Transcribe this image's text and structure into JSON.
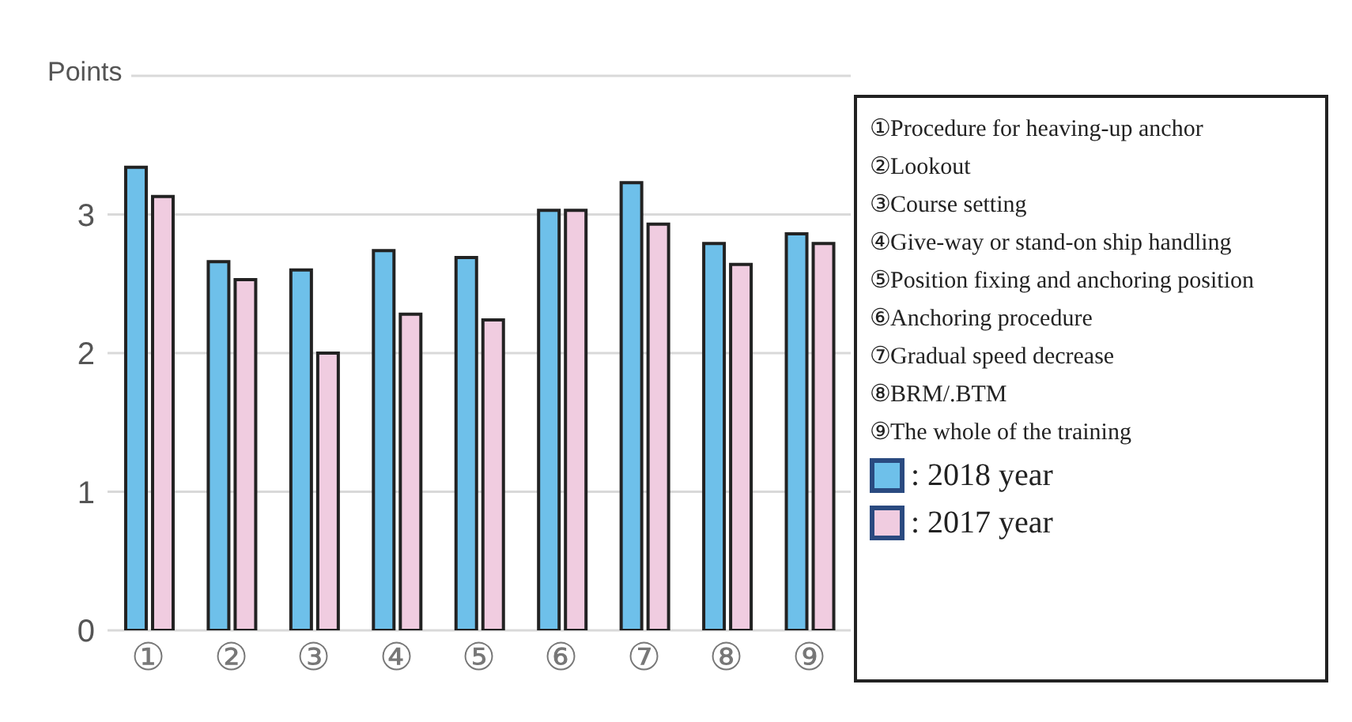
{
  "chart_data": {
    "type": "bar",
    "ylabel": "Points",
    "categories": [
      "①",
      "②",
      "③",
      "④",
      "⑤",
      "⑥",
      "⑦",
      "⑧",
      "⑨"
    ],
    "series": [
      {
        "name": ": 2018 year",
        "color": "#6ec0ea",
        "values": [
          3.34,
          2.66,
          2.6,
          2.74,
          2.69,
          3.03,
          3.23,
          2.79,
          2.86
        ]
      },
      {
        "name": ": 2017 year",
        "color": "#f0cce0",
        "values": [
          3.13,
          2.53,
          2.0,
          2.28,
          2.24,
          3.03,
          2.93,
          2.64,
          2.79
        ]
      }
    ],
    "ylim": [
      0,
      4
    ],
    "yticks": [
      0,
      1,
      2,
      3,
      {
        "value": 4,
        "label": null
      }
    ],
    "grid": "y",
    "legend": "right",
    "annotations": [
      "①Procedure for heaving-up anchor",
      "②Lookout",
      "③Course setting",
      "④Give-way or stand-on ship handling",
      "⑤Position fixing  and anchoring position",
      "⑥Anchoring procedure",
      "⑦Gradual  speed decrease",
      "⑧BRM/.BTM",
      "⑨The whole of the training"
    ]
  }
}
